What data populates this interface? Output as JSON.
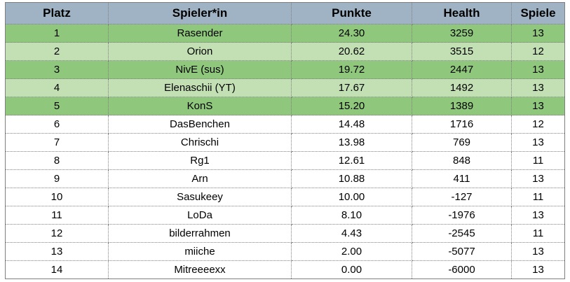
{
  "table": {
    "columns": [
      "Platz",
      "Spieler*in",
      "Punkte",
      "Health",
      "Spiele"
    ],
    "rows": [
      {
        "platz": "1",
        "spieler": "Rasender",
        "punkte": "24.30",
        "health": "3259",
        "spiele": "13",
        "highlight": true
      },
      {
        "platz": "2",
        "spieler": "Orion",
        "punkte": "20.62",
        "health": "3515",
        "spiele": "12",
        "highlight": true
      },
      {
        "platz": "3",
        "spieler": "NivE (sus)",
        "punkte": "19.72",
        "health": "2447",
        "spiele": "13",
        "highlight": true
      },
      {
        "platz": "4",
        "spieler": "Elenaschii (YT)",
        "punkte": "17.67",
        "health": "1492",
        "spiele": "13",
        "highlight": true
      },
      {
        "platz": "5",
        "spieler": "KonS",
        "punkte": "15.20",
        "health": "1389",
        "spiele": "13",
        "highlight": true
      },
      {
        "platz": "6",
        "spieler": "DasBenchen",
        "punkte": "14.48",
        "health": "1716",
        "spiele": "12",
        "highlight": false
      },
      {
        "platz": "7",
        "spieler": "Chrischi",
        "punkte": "13.98",
        "health": "769",
        "spiele": "13",
        "highlight": false
      },
      {
        "platz": "8",
        "spieler": "Rg1",
        "punkte": "12.61",
        "health": "848",
        "spiele": "11",
        "highlight": false
      },
      {
        "platz": "9",
        "spieler": "Arn",
        "punkte": "10.88",
        "health": "411",
        "spiele": "13",
        "highlight": false
      },
      {
        "platz": "10",
        "spieler": "Sasukeey",
        "punkte": "10.00",
        "health": "-127",
        "spiele": "11",
        "highlight": false
      },
      {
        "platz": "11",
        "spieler": "LoDa",
        "punkte": "8.10",
        "health": "-1976",
        "spiele": "13",
        "highlight": false
      },
      {
        "platz": "12",
        "spieler": "bilderrahmen",
        "punkte": "4.43",
        "health": "-2545",
        "spiele": "11",
        "highlight": false
      },
      {
        "platz": "13",
        "spieler": "miiche",
        "punkte": "2.00",
        "health": "-5077",
        "spiele": "13",
        "highlight": false
      },
      {
        "platz": "14",
        "spieler": "Mitreeeexx",
        "punkte": "0.00",
        "health": "-6000",
        "spiele": "13",
        "highlight": false
      }
    ]
  },
  "colors": {
    "header_bg": "#9fb3c4",
    "highlight_dark": "#8fc87d",
    "highlight_light": "#c3e0b4",
    "rest_bg": "#ffffff"
  }
}
